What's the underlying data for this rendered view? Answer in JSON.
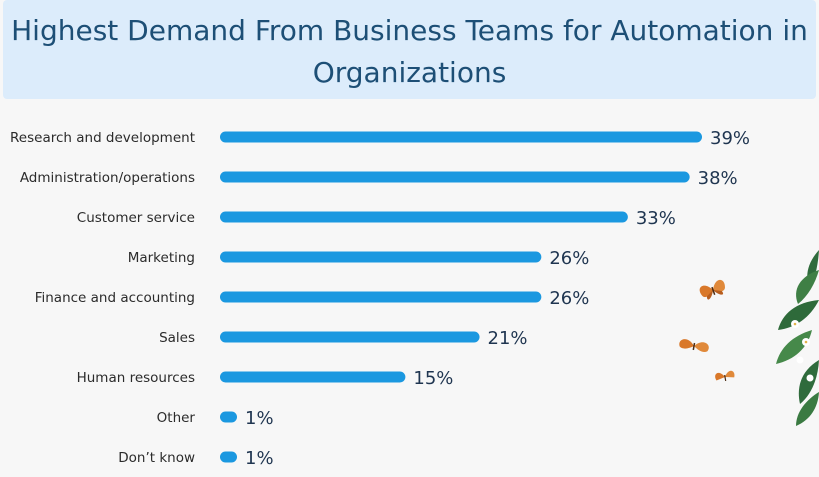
{
  "title": {
    "line1": "Highest Demand From Business Teams for Automation in",
    "line2": "Organizations"
  },
  "chart_data": {
    "type": "bar",
    "orientation": "horizontal",
    "title": "Highest Demand From Business Teams for Automation in Organizations",
    "categories": [
      "Research and development",
      "Administration/operations",
      "Customer service",
      "Marketing",
      "Finance and accounting",
      "Sales",
      "Human resources",
      "Other",
      "Don’t know"
    ],
    "values": [
      39,
      38,
      33,
      26,
      26,
      21,
      15,
      1,
      1
    ],
    "labels": [
      "39%",
      "38%",
      "33%",
      "26%",
      "26%",
      "21%",
      "15%",
      "1%",
      "1%"
    ],
    "unit": "%",
    "xlim": [
      0,
      39
    ],
    "grid": false,
    "legend": "none"
  },
  "colors": {
    "bar": "#1b98e0",
    "title_bg": "#dcecfb",
    "title_text": "#1d4f76",
    "value_text": "#1f3550"
  },
  "decorations": [
    "butterfly-icon",
    "leaves-icon"
  ]
}
